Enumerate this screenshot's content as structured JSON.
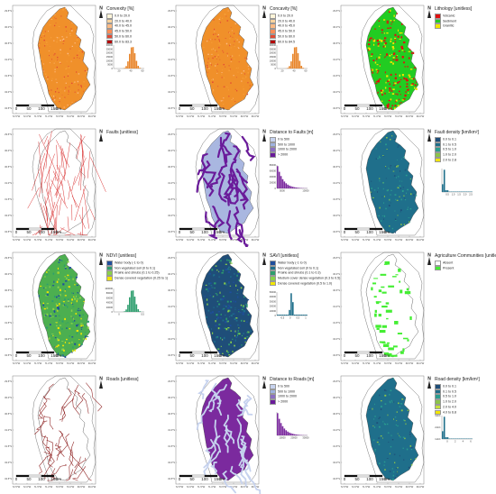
{
  "common": {
    "lat_labels": [
      "29.5°S",
      "30.0°S",
      "30.5°S",
      "31.0°S",
      "31.5°S",
      "32.0°S",
      "32.5°S"
    ],
    "lon_labels": [
      "72.5°W",
      "72.0°W",
      "71.5°W",
      "71.0°W",
      "70.5°W",
      "70.0°W",
      "69.5°W",
      "69.0°W"
    ],
    "scale": {
      "ticks": [
        "0",
        "50",
        "100",
        "150"
      ],
      "unit": "km"
    },
    "north": "N"
  },
  "panels": [
    {
      "key": "convexity",
      "title": "Convexity [%]",
      "fill": "#f0902a",
      "pattern": "solid",
      "legend": [
        {
          "label": "0.0 to 20.0",
          "color": "#fff5d9"
        },
        {
          "label": "20.0 to 40.0",
          "color": "#fdd49e"
        },
        {
          "label": "40.0 to 45.0",
          "color": "#fdbb84"
        },
        {
          "label": "45.0 to 50.0",
          "color": "#fc8d59"
        },
        {
          "label": "50.0 to 60.0",
          "color": "#e34a33"
        },
        {
          "label": "60.0 to 83.3",
          "color": "#b30000"
        }
      ],
      "hist": {
        "kind": "bell",
        "color": "#e8852a",
        "yticks": [
          "30000",
          "25000",
          "20000",
          "15000",
          "10000",
          "5000",
          "0"
        ],
        "xticks": [
          "20",
          "40",
          "60"
        ]
      }
    },
    {
      "key": "concavity",
      "title": "Concavity [%]",
      "fill": "#f0902a",
      "pattern": "solid",
      "legend": [
        {
          "label": "0.0 to 20.0",
          "color": "#fff5d9"
        },
        {
          "label": "20.0 to 40.0",
          "color": "#fdd49e"
        },
        {
          "label": "40.0 to 45.0",
          "color": "#fdbb84"
        },
        {
          "label": "45.0 to 50.0",
          "color": "#fc8d59"
        },
        {
          "label": "50.0 to 60.0",
          "color": "#e34a33"
        },
        {
          "label": "60.0 to 84.5",
          "color": "#b30000"
        }
      ],
      "hist": {
        "kind": "bell",
        "color": "#e8852a",
        "yticks": [
          "30000",
          "25000",
          "20000",
          "15000",
          "10000",
          "5000",
          "0"
        ],
        "xticks": [
          "20",
          "40",
          "60"
        ]
      }
    },
    {
      "key": "lithology",
      "title": "Lithology [unitless]",
      "fill": "#22cc22",
      "pattern": "lith",
      "legend": [
        {
          "label": "Volcanic",
          "color": "#e01010"
        },
        {
          "label": "Sediment",
          "color": "#22cc22"
        },
        {
          "label": "Granitic",
          "color": "#f2e600"
        }
      ],
      "hist": null
    },
    {
      "key": "faults",
      "title": "Faults [unitless]",
      "fill": "none",
      "pattern": "lines",
      "legend": [],
      "hist": null
    },
    {
      "key": "distance_to_faults",
      "title": "Distance to Faults [m]",
      "fill": "#a9b7e0",
      "pattern": "dist",
      "legend": [
        {
          "label": "0 to 500",
          "color": "#c6d2ee"
        },
        {
          "label": "500 to 1000",
          "color": "#9fb2e0"
        },
        {
          "label": "1000 to 2000",
          "color": "#8c6fc2"
        },
        {
          "label": "> 2000",
          "color": "#6a1b9a"
        }
      ],
      "hist": {
        "kind": "decay",
        "color": "#7b2a9e",
        "yticks": [
          "80000",
          "60000",
          "40000",
          "20000",
          "0"
        ],
        "xticks": [
          "5000",
          "10000"
        ]
      }
    },
    {
      "key": "fault_density",
      "title": "Fault density [km/km²]",
      "fill": "#1f6f8b",
      "pattern": "solid",
      "legend": [
        {
          "label": "0.0 to 0.1",
          "color": "#1f4e79"
        },
        {
          "label": "0.1 to 0.5",
          "color": "#1f6f8b"
        },
        {
          "label": "0.5 to 1.0",
          "color": "#2a9d8f"
        },
        {
          "label": "1.0 to 2.0",
          "color": "#8bc34a"
        },
        {
          "label": "2.0 to 2.8",
          "color": "#f2e600"
        }
      ],
      "hist": {
        "kind": "spike",
        "color": "#1f6f8b",
        "yticks": [
          "",
          "",
          ""
        ],
        "xticks": [
          "0.5",
          "1.0",
          "1.5",
          "2.0",
          "2.5"
        ]
      }
    },
    {
      "key": "ndvi",
      "title": "NDVI [unitless]",
      "fill": "#4caf50",
      "pattern": "ndvi",
      "legend": [
        {
          "label": "Water body (-1 to 0)",
          "color": "#1f4e9c"
        },
        {
          "label": "Non vegetated soil (0 to 0.1)",
          "color": "#2e9e6e"
        },
        {
          "label": "Prairie and shrubs (0.1 to 0.25)",
          "color": "#8bd14a"
        },
        {
          "label": "Dense covered vegetation (0.25 to 1)",
          "color": "#f2e600"
        }
      ],
      "hist": {
        "kind": "bell",
        "color": "#2e9e6e",
        "yticks": [
          "100000",
          "80000",
          "60000",
          "40000",
          "20000",
          "0"
        ],
        "xticks": [
          "0",
          "0.5"
        ]
      }
    },
    {
      "key": "savi",
      "title": "SAVI [unitless]",
      "fill": "#1f4e79",
      "pattern": "savi",
      "legend": [
        {
          "label": "Water body (-1 to 0)",
          "color": "#1f4e9c"
        },
        {
          "label": "Non vegetated soil (0 to 0.1)",
          "color": "#1f6f8b"
        },
        {
          "label": "Prairie and shrubs (0.1 to 0.3)",
          "color": "#2e9e6e"
        },
        {
          "label": "Medium cover dense vegetation (0.3 to 0.5)",
          "color": "#8bd14a"
        },
        {
          "label": "Dense covered vegetation (0.5 to 1.0)",
          "color": "#f2e600"
        }
      ],
      "hist": {
        "kind": "spike2",
        "color": "#1f6f8b",
        "yticks": [
          "50000",
          "40000",
          "30000",
          "20000",
          "10000",
          "0"
        ],
        "xticks": [
          "-0.5",
          "0",
          "0.5",
          "1"
        ]
      }
    },
    {
      "key": "agriculture",
      "title": "Agriculture Communities [unitless]",
      "fill": "#44ee33",
      "pattern": "agri",
      "legend": [
        {
          "label": "Absent",
          "color": "#ffffff"
        },
        {
          "label": "Present",
          "color": "#44ee33"
        }
      ],
      "hist": null
    },
    {
      "key": "roads",
      "title": "Roads [unitless]",
      "fill": "none",
      "pattern": "roads",
      "legend": [],
      "hist": null
    },
    {
      "key": "distance_to_roads",
      "title": "Distance to Roads [m]",
      "fill": "#7b2a9e",
      "pattern": "droads",
      "legend": [
        {
          "label": "0 to 500",
          "color": "#c6d2ee"
        },
        {
          "label": "500 to 1000",
          "color": "#9fb2e0"
        },
        {
          "label": "1000 to 2000",
          "color": "#8c6fc2"
        },
        {
          "label": "> 2000",
          "color": "#6a1b9a"
        }
      ],
      "hist": {
        "kind": "decay",
        "color": "#7b2a9e",
        "yticks": [
          "",
          "",
          ""
        ],
        "xticks": [
          "10000",
          "20000",
          "30000"
        ]
      }
    },
    {
      "key": "road_density",
      "title": "Road density [km/km²]",
      "fill": "#1f6f8b",
      "pattern": "solid",
      "legend": [
        {
          "label": "0.0 to 0.1",
          "color": "#1f4e79"
        },
        {
          "label": "0.1 to 0.5",
          "color": "#1f6f8b"
        },
        {
          "label": "0.5 to 1.0",
          "color": "#2a9d8f"
        },
        {
          "label": "1.0 to 2.0",
          "color": "#8bc34a"
        },
        {
          "label": "2.0 to 4.0",
          "color": "#c5e03a"
        },
        {
          "label": "4.0 to 6.8",
          "color": "#f2e600"
        }
      ],
      "hist": {
        "kind": "spike",
        "color": "#1f6f8b",
        "yticks": [
          "3x10⁵",
          "2x10⁵",
          "1x10⁵"
        ],
        "xticks": [
          "0",
          "2",
          "4",
          "6"
        ]
      }
    }
  ]
}
